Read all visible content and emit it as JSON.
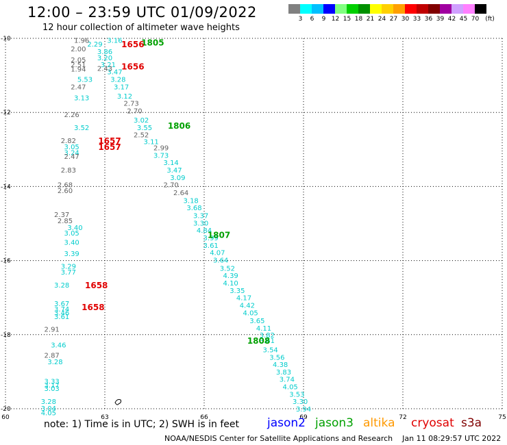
{
  "chart_data": {
    "type": "scatter",
    "title": "12:00 – 23:59 UTC 01/09/2022",
    "subtitle": "12 hour collection of altimeter wave heights",
    "xlim": [
      60,
      75
    ],
    "ylim": [
      -20,
      -10
    ],
    "x_ticks": [
      "60",
      "63",
      "66",
      "69",
      "72",
      "75"
    ],
    "y_ticks": [
      "-10",
      "-12",
      "-14",
      "-16",
      "-18",
      "-20"
    ],
    "grid": true,
    "colorbar": {
      "unit": "(ft)",
      "labels": [
        "3",
        "6",
        "9",
        "12",
        "15",
        "18",
        "21",
        "24",
        "27",
        "30",
        "33",
        "36",
        "39",
        "42",
        "45",
        "70"
      ],
      "colors": [
        "#808080",
        "#00ffff",
        "#00c0ff",
        "#0000ff",
        "#80ff80",
        "#00d000",
        "#009000",
        "#ffff00",
        "#ffd000",
        "#ffa000",
        "#ff0000",
        "#c00000",
        "#800000",
        "#a000a0",
        "#d0a0ff",
        "#ff80ff",
        "#000000"
      ]
    },
    "tracks": [
      {
        "name": "jason3",
        "color": "#00cccc",
        "points": [
          {
            "lon": 63.3,
            "lat": -10.05,
            "v": "3.16"
          },
          {
            "lon": 62.7,
            "lat": -10.15,
            "v": "2.29"
          },
          {
            "lon": 63.0,
            "lat": -10.35,
            "v": "3.86"
          },
          {
            "lon": 63.0,
            "lat": -10.52,
            "v": "3.20"
          },
          {
            "lon": 63.1,
            "lat": -10.7,
            "v": "3.21"
          },
          {
            "lon": 63.3,
            "lat": -10.9,
            "v": "3.47"
          },
          {
            "lon": 63.4,
            "lat": -11.1,
            "v": "3.28"
          },
          {
            "lon": 63.5,
            "lat": -11.3,
            "v": "3.17"
          },
          {
            "lon": 63.6,
            "lat": -11.55,
            "v": "3.12"
          },
          {
            "lon": 64.1,
            "lat": -12.2,
            "v": "3.02"
          },
          {
            "lon": 64.2,
            "lat": -12.4,
            "v": "3.55"
          },
          {
            "lon": 64.4,
            "lat": -12.78,
            "v": "3.11"
          },
          {
            "lon": 64.7,
            "lat": -13.15,
            "v": "3.73"
          },
          {
            "lon": 65.0,
            "lat": -13.35,
            "v": "3.14"
          },
          {
            "lon": 65.1,
            "lat": -13.55,
            "v": "3.47"
          },
          {
            "lon": 65.2,
            "lat": -13.75,
            "v": "3.09"
          },
          {
            "lon": 65.6,
            "lat": -14.37,
            "v": "3.18"
          },
          {
            "lon": 65.7,
            "lat": -14.57,
            "v": "3.68"
          },
          {
            "lon": 65.9,
            "lat": -14.78,
            "v": "3.37"
          },
          {
            "lon": 65.9,
            "lat": -14.98,
            "v": "3.30"
          },
          {
            "lon": 66.0,
            "lat": -15.18,
            "v": "4.84"
          },
          {
            "lon": 66.2,
            "lat": -15.38,
            "v": "3.99"
          },
          {
            "lon": 66.2,
            "lat": -15.58,
            "v": "3.61"
          },
          {
            "lon": 66.4,
            "lat": -15.78,
            "v": "4.07"
          },
          {
            "lon": 66.5,
            "lat": -15.98,
            "v": "3.64"
          },
          {
            "lon": 66.7,
            "lat": -16.2,
            "v": "3.52"
          },
          {
            "lon": 66.8,
            "lat": -16.4,
            "v": "4.39"
          },
          {
            "lon": 66.8,
            "lat": -16.6,
            "v": "4.10"
          },
          {
            "lon": 67.0,
            "lat": -16.8,
            "v": "3.35"
          },
          {
            "lon": 67.2,
            "lat": -17.0,
            "v": "4.17"
          },
          {
            "lon": 67.3,
            "lat": -17.2,
            "v": "4.42"
          },
          {
            "lon": 67.4,
            "lat": -17.4,
            "v": "4.05"
          },
          {
            "lon": 67.6,
            "lat": -17.62,
            "v": "3.65"
          },
          {
            "lon": 67.8,
            "lat": -17.82,
            "v": "4.11"
          },
          {
            "lon": 67.9,
            "lat": -18.0,
            "v": "3.82"
          },
          {
            "lon": 67.9,
            "lat": -18.15,
            "v": "3.61"
          },
          {
            "lon": 68.0,
            "lat": -18.4,
            "v": "3.54"
          },
          {
            "lon": 68.2,
            "lat": -18.6,
            "v": "3.56"
          },
          {
            "lon": 68.3,
            "lat": -18.8,
            "v": "4.38"
          },
          {
            "lon": 68.4,
            "lat": -19.0,
            "v": "3.83"
          },
          {
            "lon": 68.5,
            "lat": -19.2,
            "v": "3.74"
          },
          {
            "lon": 68.6,
            "lat": -19.4,
            "v": "4.05"
          },
          {
            "lon": 68.8,
            "lat": -19.6,
            "v": "3.53"
          },
          {
            "lon": 68.9,
            "lat": -19.8,
            "v": "3.30"
          },
          {
            "lon": 69.0,
            "lat": -20.0,
            "v": "3.94"
          },
          {
            "lon": 62.4,
            "lat": -11.1,
            "v": "5.53"
          },
          {
            "lon": 62.3,
            "lat": -11.6,
            "v": "3.13"
          },
          {
            "lon": 62.3,
            "lat": -12.4,
            "v": "3.52"
          },
          {
            "lon": 62.0,
            "lat": -12.92,
            "v": "3.05"
          },
          {
            "lon": 62.0,
            "lat": -13.08,
            "v": "3.24"
          },
          {
            "lon": 62.1,
            "lat": -15.1,
            "v": "3.40"
          },
          {
            "lon": 62.0,
            "lat": -15.25,
            "v": "3.05"
          },
          {
            "lon": 62.0,
            "lat": -15.5,
            "v": "3.40"
          },
          {
            "lon": 62.0,
            "lat": -15.8,
            "v": "3.39"
          },
          {
            "lon": 61.9,
            "lat": -16.15,
            "v": "3.29"
          },
          {
            "lon": 61.9,
            "lat": -16.3,
            "v": "3.77"
          },
          {
            "lon": 61.7,
            "lat": -16.65,
            "v": "3.28"
          },
          {
            "lon": 61.7,
            "lat": -17.15,
            "v": "3.67"
          },
          {
            "lon": 61.7,
            "lat": -17.3,
            "v": "3.74"
          },
          {
            "lon": 61.7,
            "lat": -17.4,
            "v": "3.46"
          },
          {
            "lon": 61.7,
            "lat": -17.5,
            "v": "3.61"
          },
          {
            "lon": 61.6,
            "lat": -18.27,
            "v": "3.46"
          },
          {
            "lon": 61.5,
            "lat": -18.72,
            "v": "3.28"
          },
          {
            "lon": 61.4,
            "lat": -19.25,
            "v": "3.33"
          },
          {
            "lon": 61.4,
            "lat": -19.35,
            "v": "3.17"
          },
          {
            "lon": 61.4,
            "lat": -19.45,
            "v": "3.03"
          },
          {
            "lon": 61.3,
            "lat": -19.8,
            "v": "3.28"
          },
          {
            "lon": 61.3,
            "lat": -19.98,
            "v": "3.04"
          },
          {
            "lon": 61.3,
            "lat": -20.1,
            "v": "4.05"
          }
        ]
      },
      {
        "name": "s3a",
        "color": "#606060",
        "points": [
          {
            "lon": 62.3,
            "lat": -10.05,
            "v": "1.96"
          },
          {
            "lon": 62.2,
            "lat": -10.28,
            "v": "2.00"
          },
          {
            "lon": 62.2,
            "lat": -10.57,
            "v": "2.05"
          },
          {
            "lon": 62.2,
            "lat": -10.7,
            "v": "2.51"
          },
          {
            "lon": 62.2,
            "lat": -10.82,
            "v": "1.94"
          },
          {
            "lon": 63.0,
            "lat": -10.8,
            "v": "2.43"
          },
          {
            "lon": 62.2,
            "lat": -11.3,
            "v": "2.47"
          },
          {
            "lon": 63.8,
            "lat": -11.75,
            "v": "2.73"
          },
          {
            "lon": 63.9,
            "lat": -11.95,
            "v": "2.70"
          },
          {
            "lon": 62.0,
            "lat": -12.05,
            "v": "2.26"
          },
          {
            "lon": 64.1,
            "lat": -12.6,
            "v": "2.52"
          },
          {
            "lon": 64.7,
            "lat": -12.95,
            "v": "2.99"
          },
          {
            "lon": 61.9,
            "lat": -12.75,
            "v": "2.82"
          },
          {
            "lon": 62.0,
            "lat": -13.18,
            "v": "2.47"
          },
          {
            "lon": 61.9,
            "lat": -13.55,
            "v": "2.83"
          },
          {
            "lon": 61.8,
            "lat": -13.95,
            "v": "2.68"
          },
          {
            "lon": 61.8,
            "lat": -14.1,
            "v": "2.60"
          },
          {
            "lon": 65.0,
            "lat": -13.95,
            "v": "2.70"
          },
          {
            "lon": 65.3,
            "lat": -14.16,
            "v": "2.64"
          },
          {
            "lon": 61.7,
            "lat": -14.75,
            "v": "2.37"
          },
          {
            "lon": 61.8,
            "lat": -14.92,
            "v": "2.85"
          },
          {
            "lon": 61.4,
            "lat": -17.85,
            "v": "2.91"
          },
          {
            "lon": 61.4,
            "lat": -18.55,
            "v": "2.87"
          }
        ]
      }
    ],
    "time_labels": [
      {
        "lon": 64.1,
        "lat": -10.1,
        "t": "1805",
        "color": "#00a000"
      },
      {
        "lon": 63.5,
        "lat": -10.15,
        "t": "1656",
        "color": "#e00000"
      },
      {
        "lon": 63.5,
        "lat": -10.75,
        "t": "1656",
        "color": "#e00000"
      },
      {
        "lon": 64.9,
        "lat": -12.35,
        "t": "1806",
        "color": "#00a000"
      },
      {
        "lon": 62.8,
        "lat": -12.75,
        "t": "1657",
        "color": "#e00000"
      },
      {
        "lon": 62.8,
        "lat": -12.92,
        "t": "1657",
        "color": "#e00000"
      },
      {
        "lon": 66.1,
        "lat": -15.3,
        "t": "1807",
        "color": "#00a000"
      },
      {
        "lon": 62.4,
        "lat": -16.65,
        "t": "1658",
        "color": "#e00000"
      },
      {
        "lon": 62.3,
        "lat": -17.25,
        "t": "1658",
        "color": "#e00000"
      },
      {
        "lon": 67.3,
        "lat": -18.15,
        "t": "1808",
        "color": "#00a000"
      }
    ]
  },
  "legend": {
    "note": "note: 1) Time is in UTC; 2) SWH is in feet",
    "satellites": [
      {
        "name": "jason2",
        "color": "#0000ff"
      },
      {
        "name": "jason3",
        "color": "#00a000"
      },
      {
        "name": "altika",
        "color": "#ff9900"
      },
      {
        "name": "cryosat",
        "color": "#e00000"
      },
      {
        "name": "s3a",
        "color": "#800000"
      }
    ]
  },
  "credit": "NOAA/NESDIS Center for Satellite Applications and Research    Jan 11 08:29:57 UTC 2022"
}
